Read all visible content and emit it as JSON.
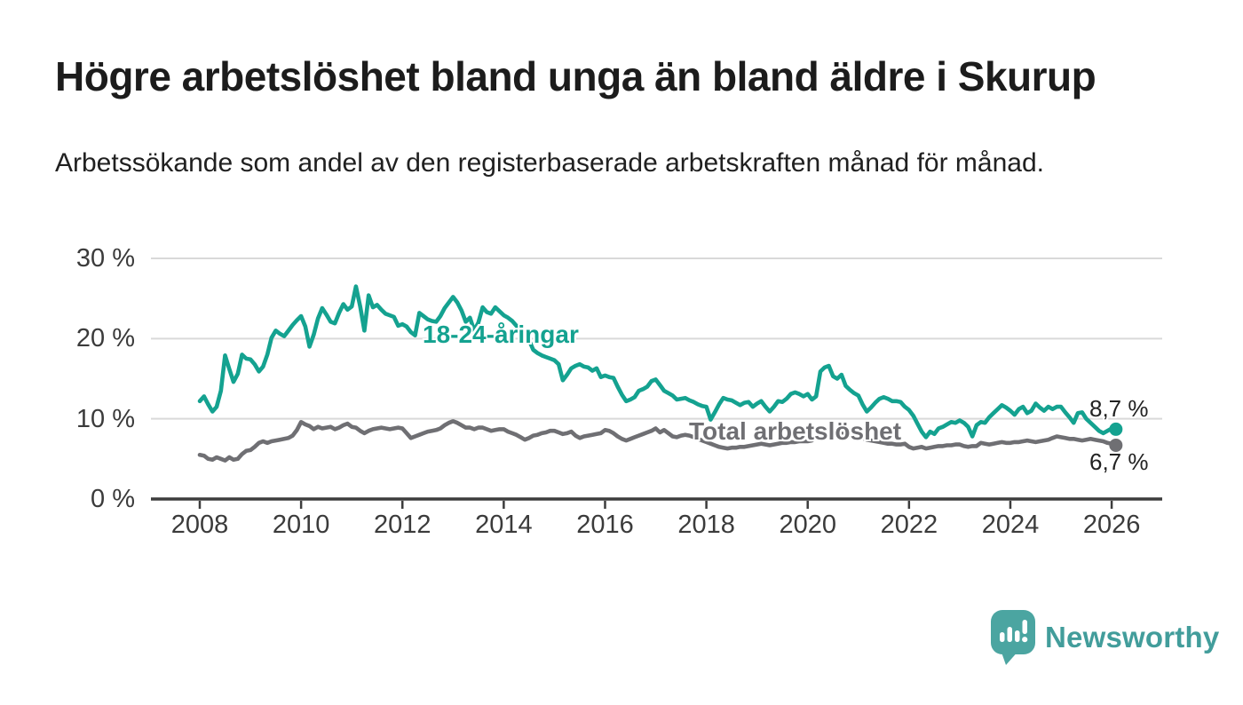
{
  "title": "Högre arbetslöshet bland unga än bland äldre i Skurup",
  "subtitle": "Arbetssökande som andel av den registerbaserade arbetskraften månad för månad.",
  "branding": {
    "name": "Newsworthy"
  },
  "colors": {
    "young_line": "#14a290",
    "total_line": "#6f6f73",
    "brand_teal": "#4ba5a1",
    "grid": "#d9d9d9",
    "axis": "#3d3d3d",
    "text": "#1c1c1c"
  },
  "chart_data": {
    "type": "line",
    "x_unit": "month",
    "x_start": "2008-01",
    "x_end": "2026-02",
    "xlim": [
      2007.0,
      2027.0
    ],
    "ylim": [
      0,
      30
    ],
    "grid": "horizontal",
    "x_ticks": [
      2008,
      2010,
      2012,
      2014,
      2016,
      2018,
      2020,
      2022,
      2024,
      2026
    ],
    "y_ticks": [
      {
        "value": 0,
        "label": "0 %"
      },
      {
        "value": 10,
        "label": "10 %"
      },
      {
        "value": 20,
        "label": "20 %"
      },
      {
        "value": 30,
        "label": "30 %"
      }
    ],
    "series": [
      {
        "name": "18-24-åringar",
        "color": "#14a290",
        "end_value": 8.7,
        "end_label": "8,7 %",
        "values": [
          12.2,
          12.8,
          11.8,
          10.9,
          11.5,
          13.5,
          17.9,
          16.2,
          14.6,
          15.6,
          18.0,
          17.5,
          17.4,
          16.8,
          15.9,
          16.5,
          18.0,
          20.1,
          21.0,
          20.6,
          20.3,
          21.0,
          21.7,
          22.3,
          22.8,
          21.5,
          19.0,
          20.5,
          22.5,
          23.8,
          23.0,
          22.1,
          21.9,
          23.2,
          24.3,
          23.6,
          24.0,
          26.5,
          24.0,
          21.0,
          25.4,
          23.9,
          24.2,
          23.6,
          23.1,
          22.9,
          22.7,
          21.6,
          21.8,
          21.5,
          20.8,
          20.4,
          23.2,
          22.8,
          22.4,
          22.2,
          22.1,
          22.8,
          23.8,
          24.5,
          25.2,
          24.5,
          23.5,
          22.1,
          22.6,
          21.0,
          22.0,
          23.9,
          23.3,
          23.1,
          23.9,
          23.4,
          22.9,
          22.6,
          22.2,
          21.6,
          21.0,
          20.4,
          19.8,
          18.6,
          18.2,
          17.9,
          17.7,
          17.5,
          17.3,
          16.8,
          14.8,
          15.5,
          16.3,
          16.6,
          16.8,
          16.5,
          16.4,
          16.0,
          16.3,
          15.2,
          15.4,
          15.2,
          15.1,
          14.0,
          13.0,
          12.2,
          12.4,
          12.7,
          13.5,
          13.7,
          14.0,
          14.7,
          14.9,
          14.2,
          13.5,
          13.2,
          12.9,
          12.4,
          12.5,
          12.6,
          12.3,
          12.1,
          11.8,
          11.6,
          11.5,
          9.9,
          10.8,
          11.8,
          12.6,
          12.4,
          12.3,
          12.0,
          11.7,
          12.0,
          12.1,
          11.5,
          11.9,
          12.2,
          11.5,
          10.9,
          11.5,
          12.2,
          12.1,
          12.5,
          13.1,
          13.3,
          13.1,
          12.8,
          13.1,
          12.4,
          12.8,
          15.9,
          16.4,
          16.6,
          15.3,
          15.0,
          15.5,
          14.1,
          13.6,
          13.2,
          12.9,
          11.8,
          10.9,
          11.4,
          12.0,
          12.5,
          12.7,
          12.5,
          12.2,
          12.2,
          12.1,
          11.5,
          11.1,
          10.4,
          9.4,
          8.4,
          7.7,
          8.4,
          8.1,
          8.8,
          9.0,
          9.3,
          9.6,
          9.5,
          9.8,
          9.5,
          9.0,
          7.8,
          9.2,
          9.6,
          9.5,
          10.2,
          10.7,
          11.2,
          11.7,
          11.4,
          11.0,
          10.5,
          11.2,
          11.5,
          10.7,
          11.0,
          11.9,
          11.4,
          11.0,
          11.5,
          11.2,
          11.5,
          11.5,
          10.8,
          10.2,
          9.5,
          10.7,
          10.8,
          10.0,
          9.5,
          9.0,
          8.5,
          8.2,
          8.5,
          8.8,
          8.7
        ]
      },
      {
        "name": "Total arbetslöshet",
        "color": "#6f6f73",
        "end_value": 6.7,
        "end_label": "6,7 %",
        "values": [
          5.5,
          5.4,
          5.0,
          4.9,
          5.2,
          5.0,
          4.8,
          5.2,
          4.9,
          5.0,
          5.6,
          6.0,
          6.1,
          6.5,
          7.0,
          7.2,
          7.0,
          7.2,
          7.3,
          7.4,
          7.5,
          7.6,
          7.9,
          8.6,
          9.6,
          9.3,
          9.1,
          8.7,
          9.0,
          8.8,
          8.9,
          9.0,
          8.7,
          8.9,
          9.2,
          9.4,
          9.0,
          8.9,
          8.5,
          8.2,
          8.5,
          8.7,
          8.8,
          8.9,
          8.8,
          8.7,
          8.8,
          8.9,
          8.8,
          8.2,
          7.6,
          7.8,
          8.0,
          8.2,
          8.4,
          8.5,
          8.6,
          8.8,
          9.2,
          9.5,
          9.7,
          9.5,
          9.2,
          8.9,
          8.9,
          8.7,
          8.9,
          8.9,
          8.7,
          8.5,
          8.6,
          8.7,
          8.7,
          8.4,
          8.2,
          8.0,
          7.7,
          7.4,
          7.6,
          7.9,
          8.0,
          8.2,
          8.3,
          8.5,
          8.5,
          8.3,
          8.1,
          8.2,
          8.4,
          7.9,
          7.6,
          7.8,
          7.9,
          8.0,
          8.1,
          8.2,
          8.6,
          8.5,
          8.2,
          7.8,
          7.5,
          7.3,
          7.5,
          7.7,
          7.9,
          8.1,
          8.3,
          8.5,
          8.8,
          8.3,
          8.6,
          8.2,
          7.8,
          7.7,
          7.9,
          8.0,
          7.9,
          7.7,
          7.5,
          7.3,
          7.1,
          6.9,
          6.7,
          6.5,
          6.4,
          6.3,
          6.4,
          6.4,
          6.5,
          6.5,
          6.6,
          6.7,
          6.8,
          6.9,
          6.8,
          6.7,
          6.8,
          6.9,
          7.0,
          7.0,
          7.1,
          7.1,
          7.2,
          7.2,
          7.2,
          7.3,
          7.8,
          8.4,
          8.6,
          8.6,
          8.5,
          8.4,
          8.2,
          8.0,
          7.9,
          7.8,
          7.7,
          7.6,
          7.4,
          7.3,
          7.2,
          7.1,
          7.0,
          6.9,
          6.9,
          6.8,
          6.8,
          6.9,
          6.5,
          6.3,
          6.4,
          6.5,
          6.3,
          6.4,
          6.5,
          6.6,
          6.6,
          6.7,
          6.7,
          6.8,
          6.8,
          6.6,
          6.5,
          6.6,
          6.6,
          7.0,
          6.9,
          6.8,
          6.9,
          7.0,
          7.1,
          7.0,
          7.0,
          7.1,
          7.1,
          7.2,
          7.3,
          7.2,
          7.1,
          7.2,
          7.3,
          7.4,
          7.6,
          7.8,
          7.7,
          7.6,
          7.5,
          7.5,
          7.4,
          7.3,
          7.4,
          7.5,
          7.4,
          7.3,
          7.2,
          7.0,
          6.9,
          6.7
        ]
      }
    ]
  }
}
